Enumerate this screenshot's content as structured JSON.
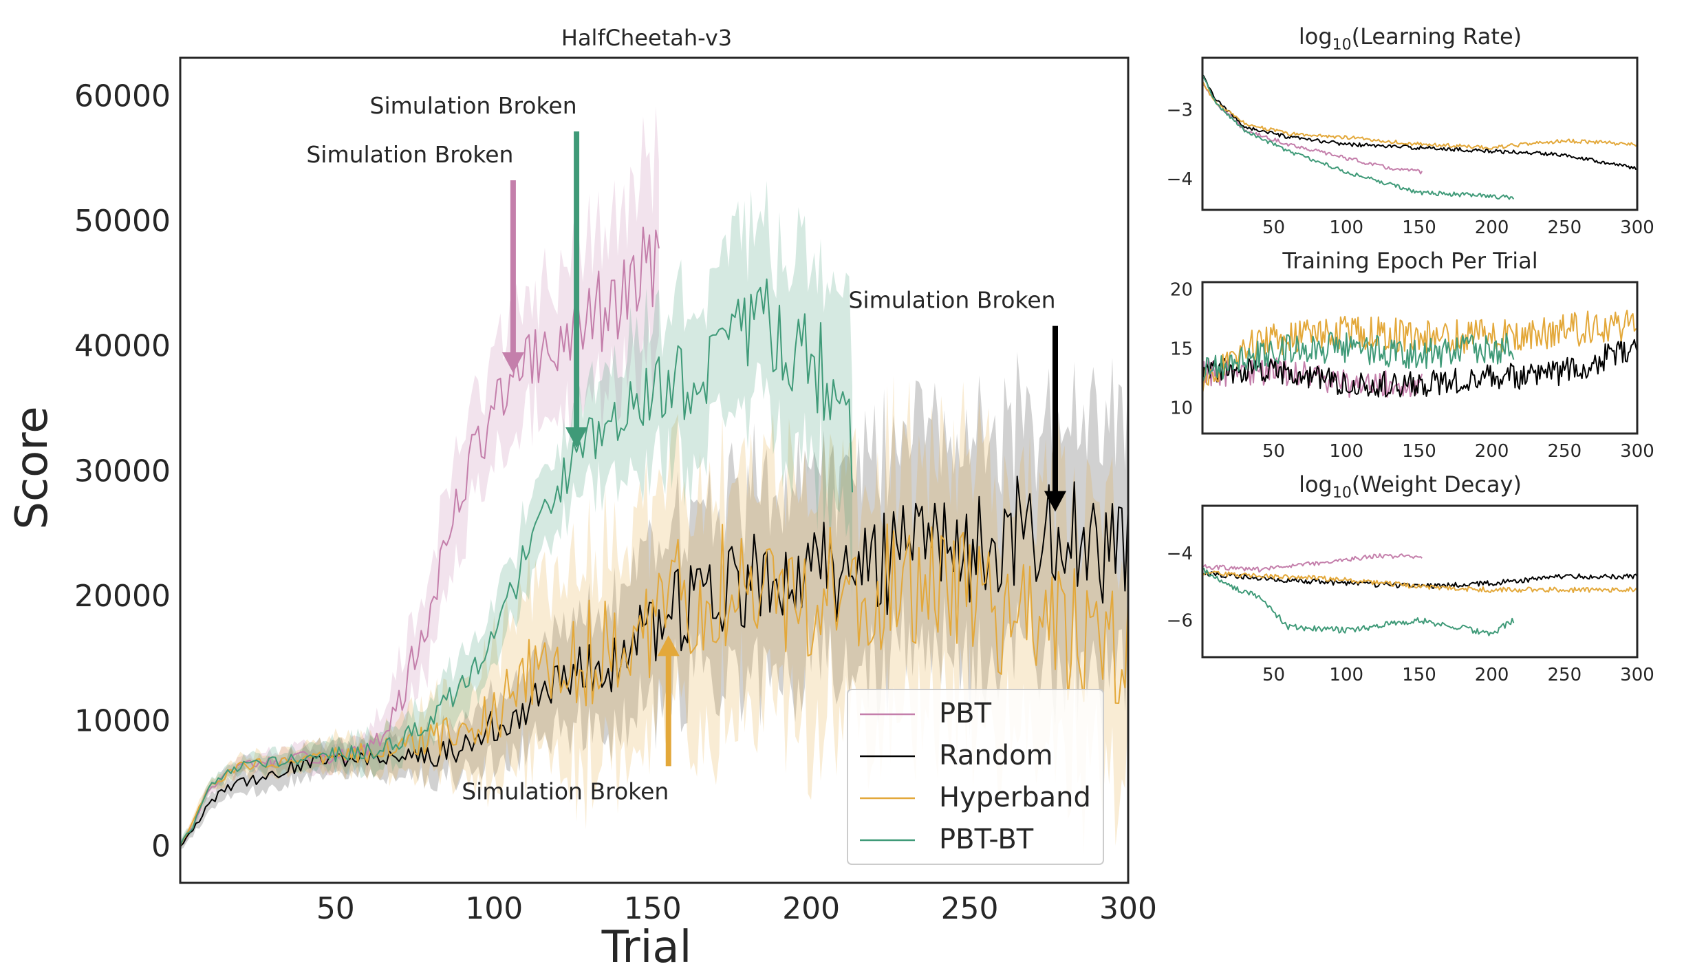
{
  "colors": {
    "PBT": "#c47fab",
    "Random": "#000000",
    "Hyperband": "#e3a83a",
    "PBT-BT": "#3f9a78",
    "axis": "#262626"
  },
  "chart_data": [
    {
      "id": "main",
      "type": "line",
      "title": "HalfCheetah-v3",
      "xlabel": "Trial",
      "ylabel": "Score",
      "xlim": [
        1,
        300
      ],
      "ylim": [
        -3000,
        63000
      ],
      "xticks": [
        50,
        100,
        150,
        200,
        250,
        300
      ],
      "yticks": [
        0,
        10000,
        20000,
        30000,
        40000,
        50000,
        60000
      ],
      "xtick_labels": [
        "50",
        "100",
        "150",
        "200",
        "250",
        "300"
      ],
      "ytick_labels": [
        "0",
        "10000",
        "20000",
        "30000",
        "40000",
        "50000",
        "60000"
      ],
      "grid": false,
      "legend": {
        "placement": "lower-right",
        "entries": [
          "PBT",
          "Random",
          "Hyperband",
          "PBT-BT"
        ]
      },
      "series": [
        {
          "name": "PBT",
          "end": 152,
          "shaded": true,
          "anchors": [
            [
              1,
              0
            ],
            [
              5,
              1500
            ],
            [
              10,
              4500
            ],
            [
              20,
              6400
            ],
            [
              40,
              7000
            ],
            [
              55,
              7200
            ],
            [
              62,
              7800
            ],
            [
              70,
              11000
            ],
            [
              80,
              19000
            ],
            [
              90,
              29000
            ],
            [
              100,
              35000
            ],
            [
              110,
              38000
            ],
            [
              120,
              40000
            ],
            [
              130,
              42000
            ],
            [
              140,
              43500
            ],
            [
              150,
              47000
            ],
            [
              152,
              47000
            ]
          ],
          "band_anchors": [
            [
              1,
              300
            ],
            [
              20,
              600
            ],
            [
              60,
              1200
            ],
            [
              70,
              3000
            ],
            [
              90,
              4000
            ],
            [
              110,
              5000
            ],
            [
              130,
              6500
            ],
            [
              152,
              8000
            ]
          ]
        },
        {
          "name": "Random",
          "end": 300,
          "shaded": true,
          "anchors": [
            [
              1,
              0
            ],
            [
              5,
              1200
            ],
            [
              10,
              3500
            ],
            [
              20,
              5000
            ],
            [
              40,
              6500
            ],
            [
              60,
              7000
            ],
            [
              80,
              7200
            ],
            [
              90,
              8000
            ],
            [
              100,
              9500
            ],
            [
              110,
              11000
            ],
            [
              120,
              12500
            ],
            [
              130,
              14000
            ],
            [
              140,
              15500
            ],
            [
              150,
              17000
            ],
            [
              160,
              19000
            ],
            [
              180,
              21000
            ],
            [
              200,
              22000
            ],
            [
              220,
              23000
            ],
            [
              240,
              23500
            ],
            [
              260,
              24000
            ],
            [
              280,
              26000
            ],
            [
              300,
              24000
            ]
          ],
          "band_anchors": [
            [
              1,
              300
            ],
            [
              20,
              1000
            ],
            [
              60,
              1300
            ],
            [
              100,
              2500
            ],
            [
              150,
              6000
            ],
            [
              200,
              8000
            ],
            [
              250,
              9000
            ],
            [
              300,
              10000
            ]
          ]
        },
        {
          "name": "Hyperband",
          "end": 300,
          "shaded": true,
          "anchors": [
            [
              1,
              0
            ],
            [
              5,
              1800
            ],
            [
              10,
              4800
            ],
            [
              20,
              6300
            ],
            [
              40,
              7000
            ],
            [
              60,
              7400
            ],
            [
              80,
              8200
            ],
            [
              100,
              11000
            ],
            [
              110,
              13000
            ],
            [
              130,
              15500
            ],
            [
              150,
              18000
            ],
            [
              160,
              20000
            ],
            [
              180,
              21000
            ],
            [
              200,
              20000
            ],
            [
              220,
              21000
            ],
            [
              240,
              20000
            ],
            [
              260,
              19000
            ],
            [
              280,
              17000
            ],
            [
              300,
              15000
            ]
          ],
          "band_anchors": [
            [
              1,
              300
            ],
            [
              20,
              700
            ],
            [
              60,
              1500
            ],
            [
              90,
              3500
            ],
            [
              120,
              8000
            ],
            [
              160,
              9000
            ],
            [
              200,
              10000
            ],
            [
              250,
              10000
            ],
            [
              300,
              10000
            ]
          ]
        },
        {
          "name": "PBT-BT",
          "end": 213,
          "shaded": true,
          "anchors": [
            [
              1,
              0
            ],
            [
              5,
              1500
            ],
            [
              10,
              4800
            ],
            [
              20,
              6400
            ],
            [
              40,
              7000
            ],
            [
              60,
              7500
            ],
            [
              70,
              8500
            ],
            [
              80,
              10000
            ],
            [
              90,
              13000
            ],
            [
              100,
              17000
            ],
            [
              110,
              23000
            ],
            [
              120,
              29000
            ],
            [
              130,
              32000
            ],
            [
              140,
              35000
            ],
            [
              150,
              36000
            ],
            [
              160,
              37000
            ],
            [
              170,
              38000
            ],
            [
              180,
              41000
            ],
            [
              185,
              44000
            ],
            [
              190,
              40000
            ],
            [
              200,
              38000
            ],
            [
              210,
              36000
            ],
            [
              213,
              33000
            ]
          ],
          "band_anchors": [
            [
              1,
              300
            ],
            [
              20,
              600
            ],
            [
              70,
              1500
            ],
            [
              100,
              2500
            ],
            [
              130,
              4000
            ],
            [
              160,
              6000
            ],
            [
              190,
              7000
            ],
            [
              213,
              9000
            ]
          ]
        }
      ],
      "annotations": [
        {
          "text": "Simulation Broken",
          "series": "PBT",
          "x": 106,
          "direction": "down"
        },
        {
          "text": "Simulation Broken",
          "series": "PBT-BT",
          "x": 126,
          "direction": "down"
        },
        {
          "text": "Simulation Broken",
          "series": "Random",
          "x": 277,
          "direction": "down"
        },
        {
          "text": "Simulation Broken",
          "series": "Hyperband",
          "x": 155,
          "direction": "up"
        }
      ]
    },
    {
      "id": "lr",
      "type": "line",
      "title_prefix": "log",
      "title_sub": "10",
      "title_suffix": "(Learning Rate)",
      "xlim": [
        1,
        300
      ],
      "ylim": [
        -4.45,
        -2.25
      ],
      "xticks": [
        50,
        100,
        150,
        200,
        250,
        300
      ],
      "yticks": [
        -3,
        -4
      ],
      "xtick_labels": [
        "50",
        "100",
        "150",
        "200",
        "250",
        "300"
      ],
      "ytick_labels": [
        "−3",
        "−4"
      ],
      "series": [
        {
          "name": "PBT",
          "end": 152,
          "anchors": [
            [
              1,
              -2.6
            ],
            [
              10,
              -2.9
            ],
            [
              30,
              -3.3
            ],
            [
              60,
              -3.5
            ],
            [
              100,
              -3.7
            ],
            [
              130,
              -3.85
            ],
            [
              152,
              -3.9
            ]
          ]
        },
        {
          "name": "Random",
          "end": 300,
          "anchors": [
            [
              1,
              -2.5
            ],
            [
              10,
              -2.85
            ],
            [
              30,
              -3.25
            ],
            [
              60,
              -3.4
            ],
            [
              100,
              -3.5
            ],
            [
              150,
              -3.55
            ],
            [
              200,
              -3.6
            ],
            [
              250,
              -3.65
            ],
            [
              300,
              -3.85
            ]
          ]
        },
        {
          "name": "Hyperband",
          "end": 300,
          "anchors": [
            [
              1,
              -2.6
            ],
            [
              10,
              -2.9
            ],
            [
              30,
              -3.2
            ],
            [
              60,
              -3.35
            ],
            [
              100,
              -3.4
            ],
            [
              150,
              -3.5
            ],
            [
              200,
              -3.55
            ],
            [
              250,
              -3.45
            ],
            [
              300,
              -3.5
            ]
          ]
        },
        {
          "name": "PBT-BT",
          "end": 215,
          "anchors": [
            [
              1,
              -2.5
            ],
            [
              10,
              -2.9
            ],
            [
              30,
              -3.3
            ],
            [
              60,
              -3.6
            ],
            [
              100,
              -3.9
            ],
            [
              150,
              -4.2
            ],
            [
              200,
              -4.25
            ],
            [
              215,
              -4.28
            ]
          ]
        }
      ]
    },
    {
      "id": "epoch",
      "type": "line",
      "title": "Training Epoch Per Trial",
      "xlim": [
        1,
        300
      ],
      "ylim": [
        7.8,
        20.6
      ],
      "xticks": [
        50,
        100,
        150,
        200,
        250,
        300
      ],
      "yticks": [
        20,
        15,
        10
      ],
      "xtick_labels": [
        "50",
        "100",
        "150",
        "200",
        "250",
        "300"
      ],
      "ytick_labels": [
        "20",
        "15",
        "10"
      ],
      "series": [
        {
          "name": "PBT",
          "end": 152,
          "anchors": [
            [
              1,
              13
            ],
            [
              30,
              13
            ],
            [
              60,
              13
            ],
            [
              100,
              12
            ],
            [
              152,
              12
            ]
          ]
        },
        {
          "name": "Random",
          "end": 300,
          "anchors": [
            [
              1,
              13
            ],
            [
              50,
              13
            ],
            [
              100,
              12
            ],
            [
              150,
              12
            ],
            [
              200,
              12.5
            ],
            [
              250,
              13
            ],
            [
              300,
              15
            ]
          ]
        },
        {
          "name": "Hyperband",
          "end": 300,
          "anchors": [
            [
              1,
              12
            ],
            [
              30,
              15
            ],
            [
              60,
              16
            ],
            [
              100,
              16.5
            ],
            [
              150,
              16
            ],
            [
              200,
              16
            ],
            [
              250,
              16.5
            ],
            [
              300,
              17
            ]
          ]
        },
        {
          "name": "PBT-BT",
          "end": 215,
          "anchors": [
            [
              1,
              13
            ],
            [
              30,
              14
            ],
            [
              60,
              15
            ],
            [
              100,
              15
            ],
            [
              150,
              14.5
            ],
            [
              200,
              15
            ],
            [
              215,
              15
            ]
          ]
        }
      ]
    },
    {
      "id": "wd",
      "type": "line",
      "title_prefix": "log",
      "title_sub": "10",
      "title_suffix": "(Weight Decay)",
      "xlim": [
        1,
        300
      ],
      "ylim": [
        -7.1,
        -2.6
      ],
      "xticks": [
        50,
        100,
        150,
        200,
        250,
        300
      ],
      "yticks": [
        -4,
        -6
      ],
      "xtick_labels": [
        "50",
        "100",
        "150",
        "200",
        "250",
        "300"
      ],
      "ytick_labels": [
        "−4",
        "−6"
      ],
      "series": [
        {
          "name": "PBT",
          "end": 152,
          "anchors": [
            [
              1,
              -4.4
            ],
            [
              40,
              -4.5
            ],
            [
              80,
              -4.3
            ],
            [
              120,
              -4.1
            ],
            [
              150,
              -4.1
            ],
            [
              152,
              -4.1
            ]
          ]
        },
        {
          "name": "Random",
          "end": 300,
          "anchors": [
            [
              1,
              -4.6
            ],
            [
              50,
              -4.8
            ],
            [
              100,
              -4.9
            ],
            [
              150,
              -5.0
            ],
            [
              200,
              -4.9
            ],
            [
              250,
              -4.7
            ],
            [
              300,
              -4.7
            ]
          ]
        },
        {
          "name": "Hyperband",
          "end": 300,
          "anchors": [
            [
              1,
              -4.6
            ],
            [
              50,
              -4.7
            ],
            [
              100,
              -4.8
            ],
            [
              150,
              -5.0
            ],
            [
              200,
              -5.1
            ],
            [
              250,
              -5.1
            ],
            [
              300,
              -5.1
            ]
          ]
        },
        {
          "name": "PBT-BT",
          "end": 215,
          "anchors": [
            [
              1,
              -4.5
            ],
            [
              20,
              -5.0
            ],
            [
              40,
              -5.3
            ],
            [
              60,
              -6.2
            ],
            [
              100,
              -6.3
            ],
            [
              150,
              -6.0
            ],
            [
              200,
              -6.4
            ],
            [
              215,
              -6.0
            ]
          ]
        }
      ]
    }
  ]
}
